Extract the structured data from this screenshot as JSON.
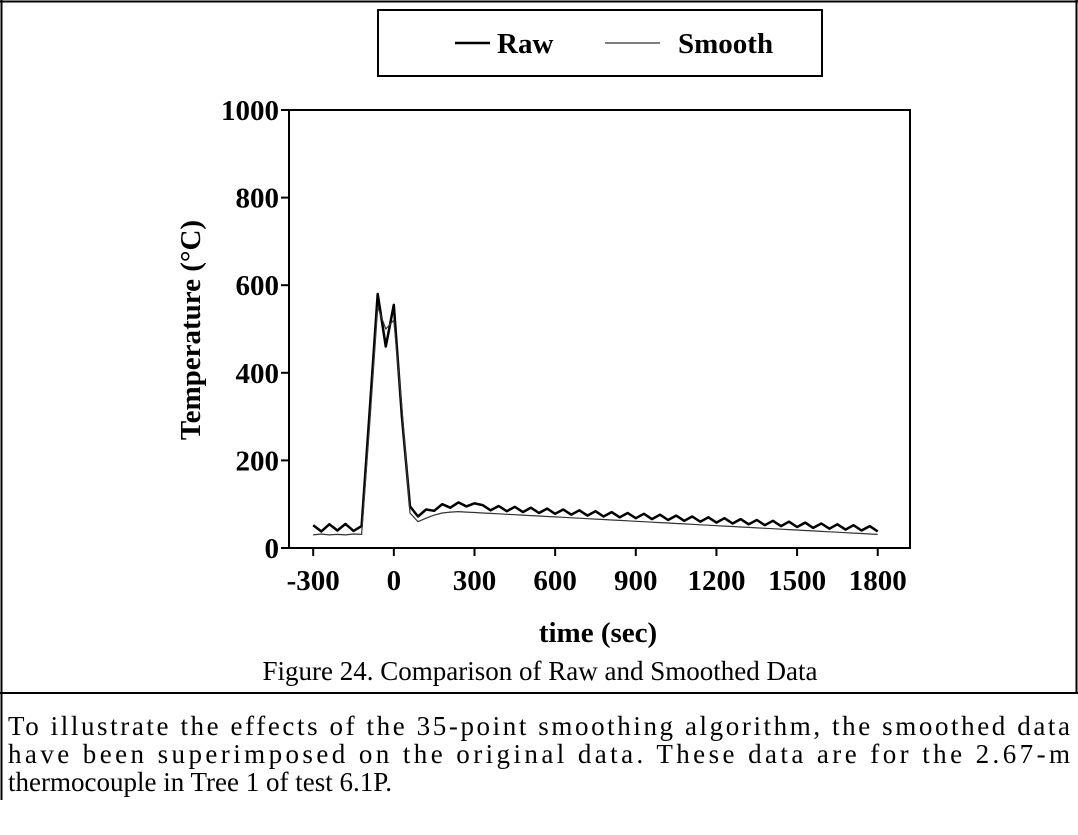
{
  "chart_data": {
    "type": "line",
    "x": [
      -300,
      -270,
      -240,
      -210,
      -180,
      -150,
      -120,
      -90,
      -60,
      -30,
      0,
      30,
      60,
      90,
      120,
      150,
      180,
      210,
      240,
      270,
      300,
      330,
      360,
      390,
      420,
      450,
      480,
      510,
      540,
      570,
      600,
      630,
      660,
      690,
      720,
      750,
      780,
      810,
      840,
      870,
      900,
      930,
      960,
      990,
      1020,
      1050,
      1080,
      1110,
      1140,
      1170,
      1200,
      1230,
      1260,
      1290,
      1320,
      1350,
      1380,
      1410,
      1440,
      1470,
      1500,
      1530,
      1560,
      1590,
      1620,
      1650,
      1680,
      1710,
      1740,
      1770,
      1800
    ],
    "series": [
      {
        "name": "Raw",
        "color": "#000000",
        "values": [
          52,
          38,
          54,
          40,
          55,
          39,
          50,
          310,
          580,
          460,
          555,
          300,
          95,
          72,
          88,
          85,
          100,
          92,
          104,
          95,
          102,
          98,
          86,
          96,
          84,
          94,
          82,
          92,
          80,
          90,
          78,
          88,
          76,
          86,
          74,
          84,
          72,
          82,
          70,
          80,
          68,
          78,
          66,
          76,
          64,
          74,
          62,
          72,
          60,
          70,
          58,
          68,
          56,
          66,
          54,
          64,
          52,
          62,
          50,
          60,
          48,
          58,
          46,
          56,
          44,
          54,
          42,
          52,
          40,
          50,
          38
        ]
      },
      {
        "name": "Smooth",
        "color": "#333333",
        "values": [
          30,
          32,
          30,
          31,
          30,
          32,
          31,
          280,
          550,
          500,
          520,
          320,
          80,
          60,
          68,
          75,
          80,
          82,
          83,
          82,
          81,
          80,
          79,
          78,
          77,
          76,
          75,
          74,
          73,
          72,
          71,
          70,
          69,
          68,
          67,
          66,
          65,
          64,
          63,
          62,
          61,
          60,
          59,
          58,
          57,
          56,
          55,
          54,
          53,
          52,
          51,
          50,
          49,
          48,
          47,
          46,
          45,
          44,
          43,
          42,
          41,
          40,
          39,
          38,
          37,
          36,
          35,
          34,
          33,
          32,
          31
        ]
      }
    ],
    "xlabel": "time (sec)",
    "ylabel": "Temperature (°C)",
    "xlim": [
      -390,
      1920
    ],
    "ylim": [
      0,
      1000
    ],
    "xticks": [
      -300,
      0,
      300,
      600,
      900,
      1200,
      1500,
      1800
    ],
    "yticks": [
      0,
      200,
      400,
      600,
      800,
      1000
    ],
    "legend": "top",
    "grid": false
  },
  "caption": "Figure 24. Comparison of Raw and Smoothed Data",
  "text_lines": [
    "To illustrate the effects of the 35-point smoothing algorithm, the smoothed data",
    "have been superimposed on the original data. These data are for the 2.67-m",
    "thermocouple in Tree 1 of test 6.1P."
  ]
}
